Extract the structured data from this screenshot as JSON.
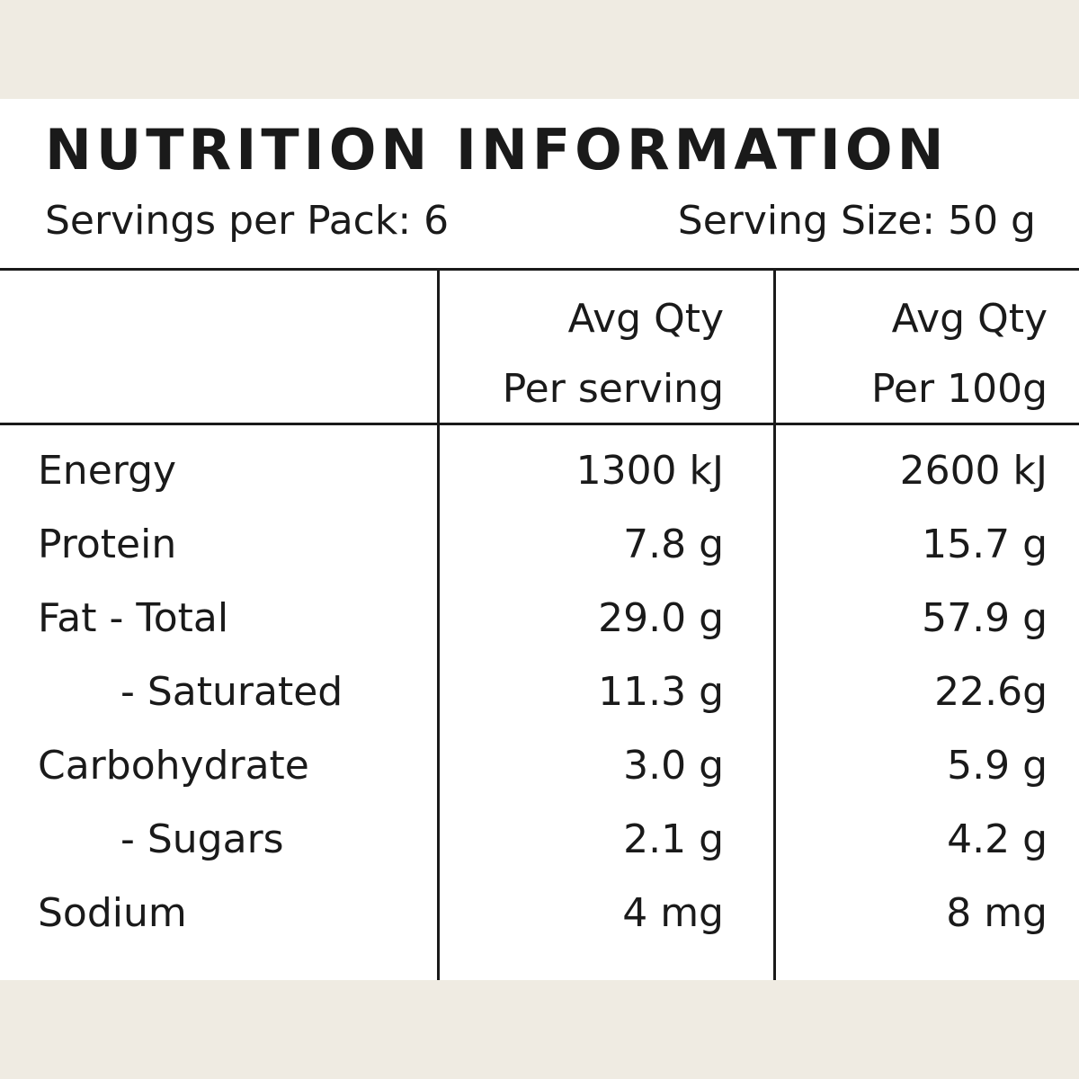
{
  "header": {
    "title": "NUTRITION INFORMATION",
    "servings": "Servings per Pack: 6",
    "serving_size": "Serving Size: 50 g"
  },
  "table": {
    "columns": [
      [
        "Avg Qty",
        "Per serving"
      ],
      [
        "Avg Qty",
        "Per 100g"
      ]
    ],
    "rows": [
      [
        "Energy",
        "1300 kJ",
        "2600 kJ"
      ],
      [
        "Protein",
        "7.8 g",
        "15.7 g"
      ],
      [
        "Fat - Total",
        "29.0 g",
        "57.9 g"
      ],
      [
        "- Saturated",
        "11.3 g",
        "22.6g"
      ],
      [
        "Carbohydrate",
        "3.0 g",
        "5.9 g"
      ],
      [
        "- Sugars",
        "2.1 g",
        "4.2 g"
      ],
      [
        "Sodium",
        "4 mg",
        "8 mg"
      ]
    ]
  }
}
